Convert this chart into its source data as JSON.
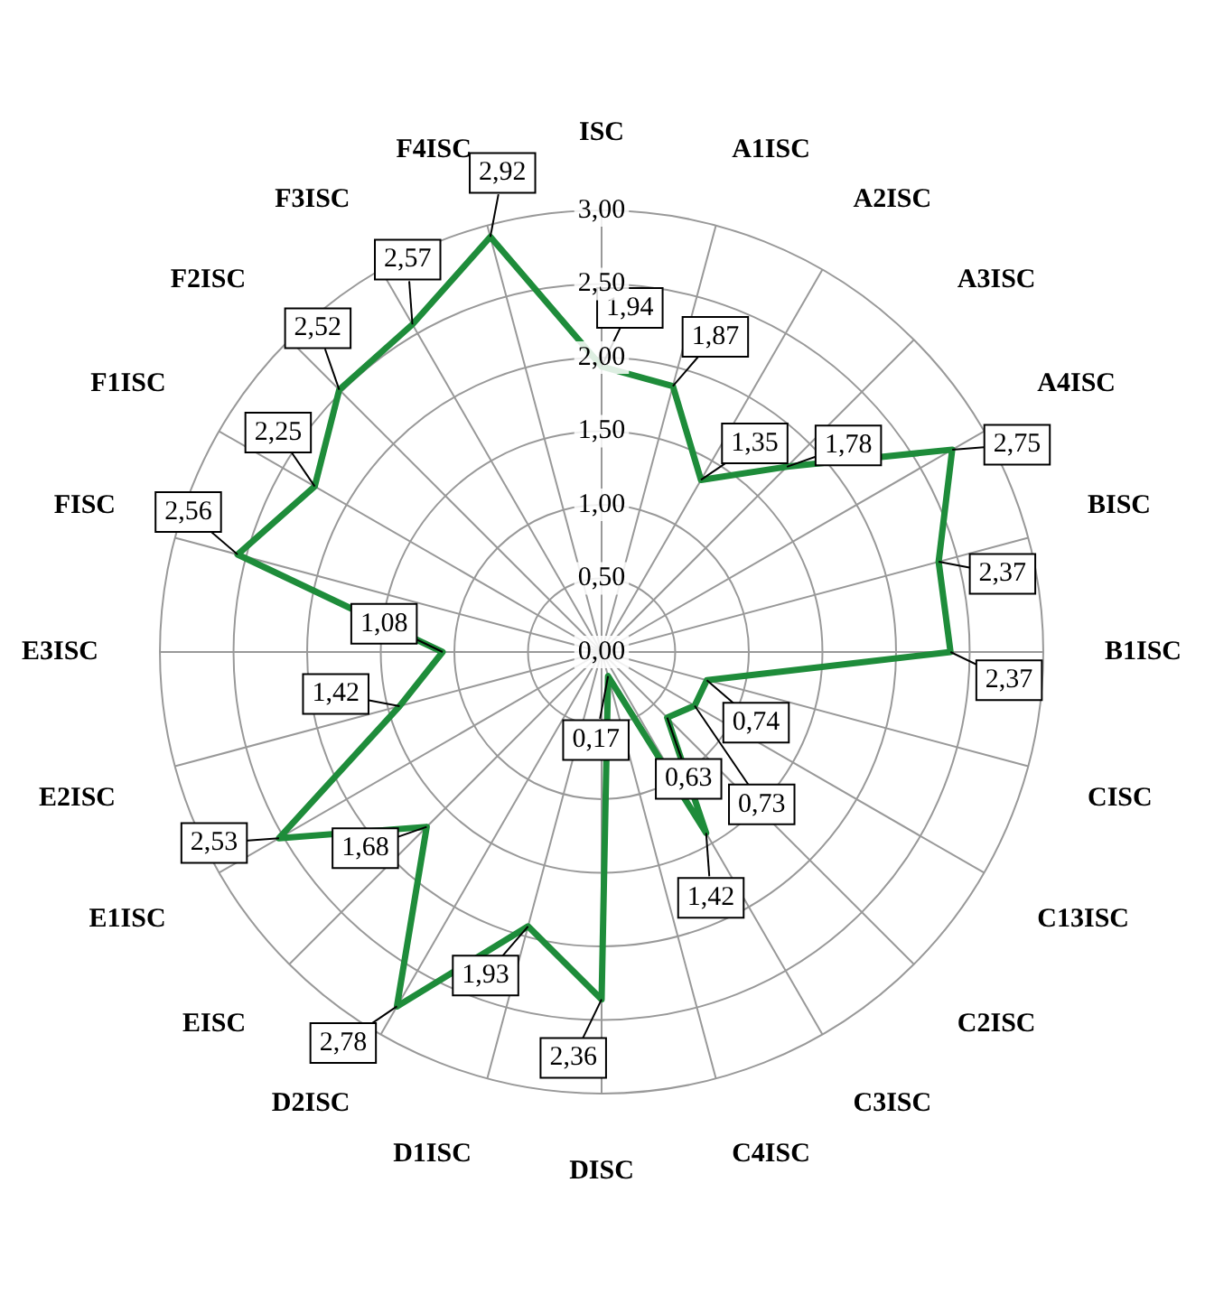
{
  "chart_data": {
    "type": "radar",
    "categories": [
      "ISC",
      "A1ISC",
      "A2ISC",
      "A3ISC",
      "A4ISC",
      "BISC",
      "B1ISC",
      "CISC",
      "C13ISC",
      "C2ISC",
      "C3ISC",
      "C4ISC",
      "DISC",
      "D1ISC",
      "D2ISC",
      "EISC",
      "E1ISC",
      "E2ISC",
      "E3ISC",
      "FISC",
      "F1ISC",
      "F2ISC",
      "F3ISC",
      "F4ISC"
    ],
    "series": [
      {
        "color": "#1e8c3a",
        "values": [
          1.94,
          1.87,
          1.35,
          1.78,
          2.75,
          2.37,
          2.37,
          0.74,
          0.73,
          0.63,
          1.42,
          0.17,
          2.36,
          1.93,
          2.78,
          1.68,
          2.53,
          1.42,
          1.08,
          2.56,
          2.25,
          2.52,
          2.57,
          2.92
        ],
        "value_labels": [
          "1,94",
          "1,87",
          "1,35",
          "1,78",
          "2,75",
          "2,37",
          "2,37",
          "0,74",
          "0,73",
          "0,63",
          "1,42",
          "0,17",
          "2,36",
          "1,93",
          "2,78",
          "1,68",
          "2,53",
          "1,42",
          "1,08",
          "2,56",
          "2,25",
          "2,52",
          "2,57",
          "2,92"
        ]
      }
    ],
    "ylim": [
      0,
      3
    ],
    "yticks": [
      {
        "value": 0,
        "label": "0,00"
      },
      {
        "value": 0.5,
        "label": "0,50"
      },
      {
        "value": 1,
        "label": "1,00"
      },
      {
        "value": 1.5,
        "label": "1,50"
      },
      {
        "value": 2,
        "label": "2,00"
      },
      {
        "value": 2.5,
        "label": "2,50"
      },
      {
        "value": 3,
        "label": "3,00"
      }
    ],
    "grid": true,
    "marker": "none",
    "line_style": "solid",
    "legend": false
  }
}
